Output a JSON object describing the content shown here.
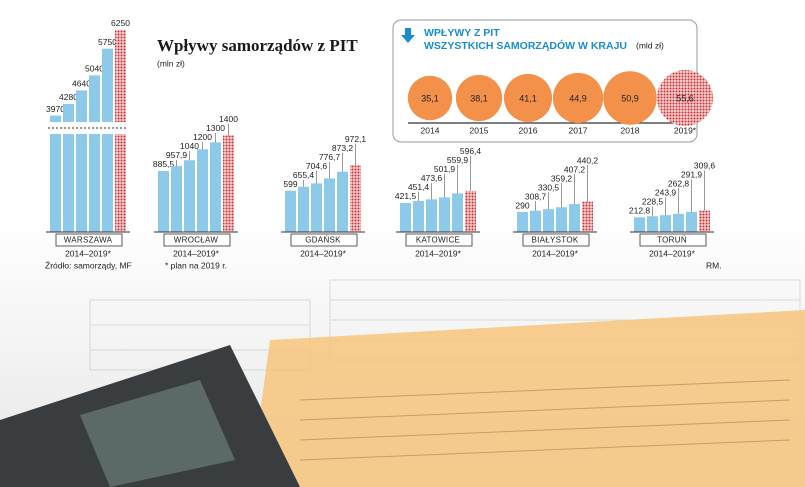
{
  "chart_data": [
    {
      "type": "panels",
      "title": "Wpływy samorządów z PIT",
      "subtitle": "(mln zł)",
      "source": "Źródło: samorządy, MF",
      "note": "* plan na 2019 r.",
      "credit": "RM.",
      "color": "#8dc9e8",
      "plan_color": "#d62a2f",
      "ylim": [
        0,
        1450
      ],
      "panels": [
        {
          "name": "WARSZAWA",
          "period": "2014–2019*",
          "ylim": [
            3800,
            6300
          ],
          "values": [
            3970,
            4280,
            4640,
            5040,
            5750,
            6250
          ]
        },
        {
          "name": "WROCŁAW",
          "period": "2014–2019*",
          "values": [
            885.5,
            957.9,
            1040,
            1200,
            1300,
            1400
          ],
          "value_labels": [
            "885,5",
            "957,9",
            "1040",
            "1200",
            "1300",
            "1400"
          ]
        },
        {
          "name": "GDAŃSK",
          "period": "2014–2019*",
          "values": [
            599,
            655.4,
            704.6,
            776.7,
            873.2,
            972.1
          ],
          "value_labels": [
            "599",
            "655,4",
            "704,6",
            "776,7",
            "873,2",
            "972,1"
          ]
        },
        {
          "name": "KATOWICE",
          "period": "2014–2019*",
          "values": [
            421.5,
            451.4,
            473.6,
            501.9,
            559.9,
            596.4
          ],
          "value_labels": [
            "421,5",
            "451,4",
            "473,6",
            "501,9",
            "559,9",
            "596,4"
          ]
        },
        {
          "name": "BIAŁYSTOK",
          "period": "2014–2019*",
          "values": [
            290,
            308.7,
            330.5,
            359.2,
            407.2,
            440.2
          ],
          "value_labels": [
            "290",
            "308,7",
            "330,5",
            "359,2",
            "407,2",
            "440,2"
          ]
        },
        {
          "name": "TORUŃ",
          "period": "2014–2019*",
          "values": [
            212.8,
            228.5,
            243.9,
            262.8,
            291.9,
            309.6
          ],
          "value_labels": [
            "212,8",
            "228,5",
            "243,9",
            "262,8",
            "291,9",
            "309,6"
          ]
        }
      ]
    },
    {
      "type": "bubble",
      "title": [
        "WPŁYWY Z PIT",
        "WSZYSTKICH SAMORZĄDÓW W KRAJU"
      ],
      "subtitle": "(mld zł)",
      "color": "#f3914a",
      "plan_color": "#d62a2f",
      "categories": [
        "2014",
        "2015",
        "2016",
        "2017",
        "2018",
        "2019*"
      ],
      "values": [
        35.1,
        38.1,
        41.1,
        44.9,
        50.9,
        55.6
      ],
      "value_labels": [
        "35,1",
        "38,1",
        "41,1",
        "44,9",
        "50,9",
        "55,6"
      ]
    }
  ]
}
